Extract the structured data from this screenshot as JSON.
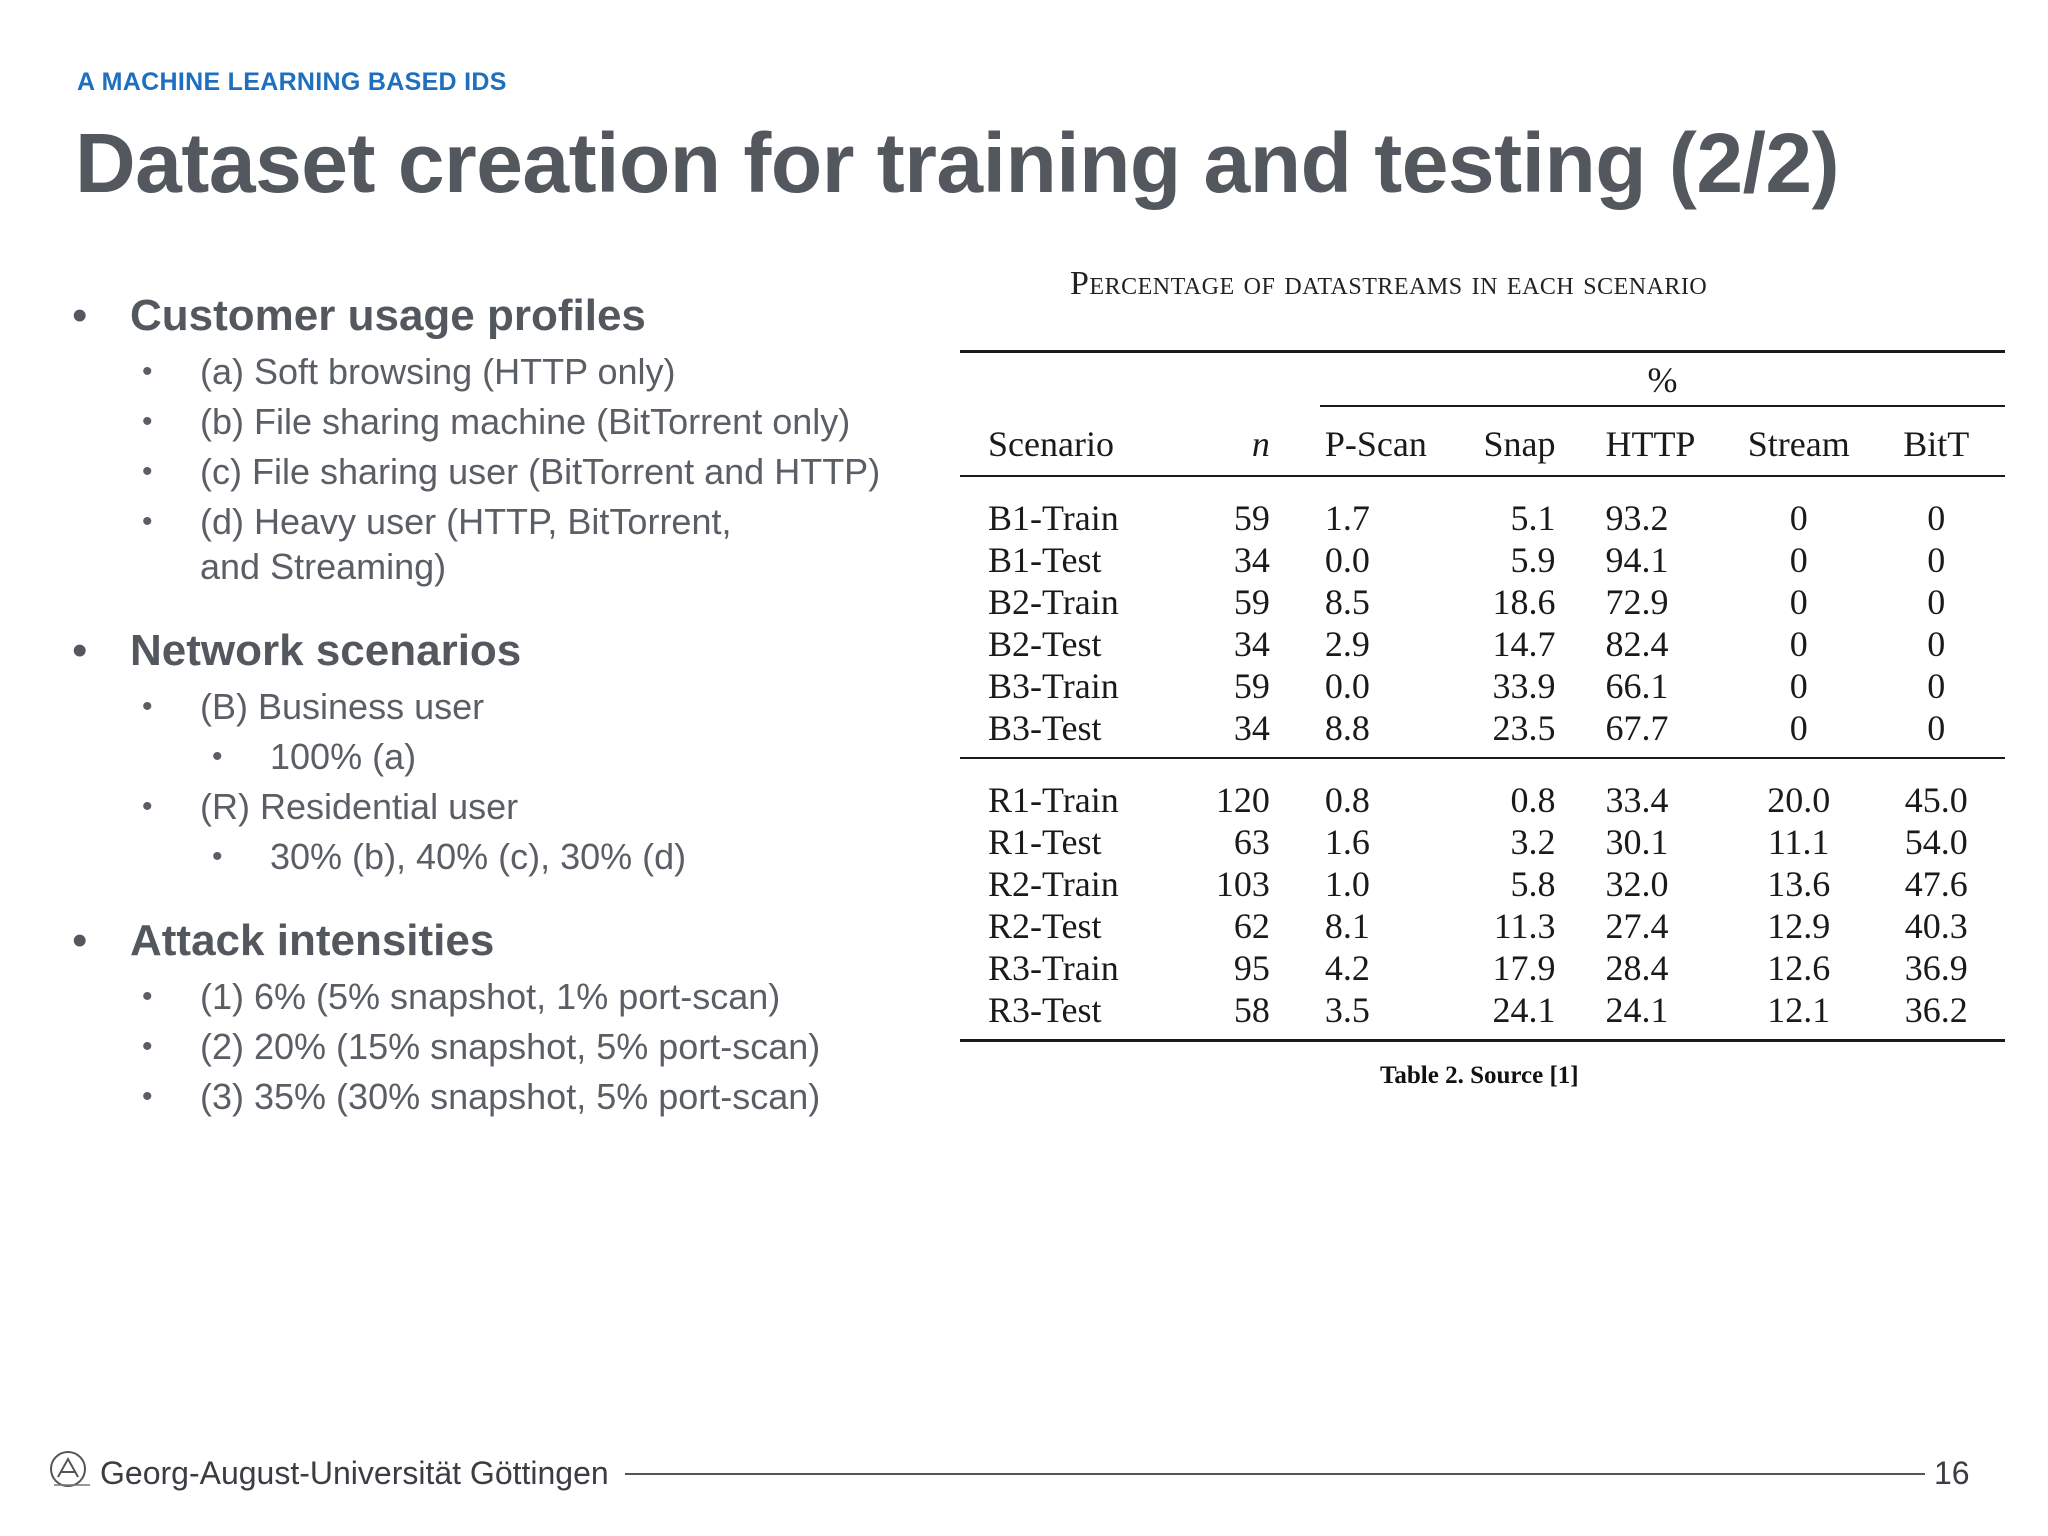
{
  "slide": {
    "kicker": "A MACHINE LEARNING BASED IDS",
    "title": "Dataset creation for training and testing (2/2)"
  },
  "bullets": {
    "profiles": {
      "heading": "Customer usage profiles",
      "items": [
        "(a) Soft browsing (HTTP only)",
        "(b) File sharing machine (BitTorrent only)",
        "(c) File sharing user (BitTorrent and HTTP)",
        "(d) Heavy user (HTTP, BitTorrent, and Streaming)"
      ]
    },
    "scenarios": {
      "heading": "Network scenarios",
      "business": "(B) Business user",
      "business_detail": "100% (a)",
      "residential": "(R) Residential user",
      "residential_detail": "30% (b), 40% (c), 30% (d)"
    },
    "attacks": {
      "heading": "Attack intensities",
      "items": [
        "(1) 6% (5% snapshot, 1% port-scan)",
        "(2) 20% (15% snapshot, 5% port-scan)",
        "(3) 35% (30% snapshot, 5% port-scan)"
      ]
    }
  },
  "table": {
    "caption": "Percentage of datastreams in each scenario",
    "group_header": "%",
    "columns": [
      "Scenario",
      "n",
      "P-Scan",
      "Snap",
      "HTTP",
      "Stream",
      "BitT"
    ],
    "rows_b": [
      [
        "B1-Train",
        "59",
        "1.7",
        "5.1",
        "93.2",
        "0",
        "0"
      ],
      [
        "B1-Test",
        "34",
        "0.0",
        "5.9",
        "94.1",
        "0",
        "0"
      ],
      [
        "B2-Train",
        "59",
        "8.5",
        "18.6",
        "72.9",
        "0",
        "0"
      ],
      [
        "B2-Test",
        "34",
        "2.9",
        "14.7",
        "82.4",
        "0",
        "0"
      ],
      [
        "B3-Train",
        "59",
        "0.0",
        "33.9",
        "66.1",
        "0",
        "0"
      ],
      [
        "B3-Test",
        "34",
        "8.8",
        "23.5",
        "67.7",
        "0",
        "0"
      ]
    ],
    "rows_r": [
      [
        "R1-Train",
        "120",
        "0.8",
        "0.8",
        "33.4",
        "20.0",
        "45.0"
      ],
      [
        "R1-Test",
        "63",
        "1.6",
        "3.2",
        "30.1",
        "11.1",
        "54.0"
      ],
      [
        "R2-Train",
        "103",
        "1.0",
        "5.8",
        "32.0",
        "13.6",
        "47.6"
      ],
      [
        "R2-Test",
        "62",
        "8.1",
        "11.3",
        "27.4",
        "12.9",
        "40.3"
      ],
      [
        "R3-Train",
        "95",
        "4.2",
        "17.9",
        "28.4",
        "12.6",
        "36.9"
      ],
      [
        "R3-Test",
        "58",
        "3.5",
        "24.1",
        "24.1",
        "12.1",
        "36.2"
      ]
    ],
    "note": "Table 2. Source [1]"
  },
  "footer": {
    "university": "Georg-August-Universität Göttingen",
    "page": "16",
    "logo_icon": "university-seal-icon"
  },
  "colors": {
    "kicker": "#1f6fbf",
    "title": "#53585f",
    "body_text": "#5a5f66"
  }
}
